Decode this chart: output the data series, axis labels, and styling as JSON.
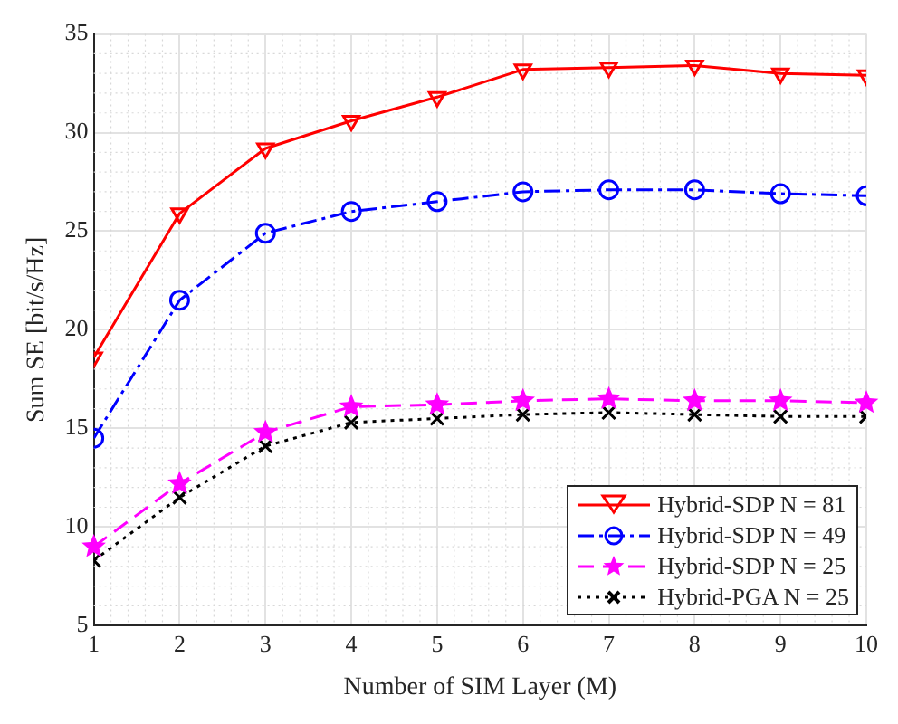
{
  "chart_data": {
    "type": "line",
    "xlabel": "Number of SIM Layer (M)",
    "ylabel": "Sum SE [bit/s/Hz]",
    "x": [
      1,
      2,
      3,
      4,
      5,
      6,
      7,
      8,
      9,
      10
    ],
    "xlim": [
      1,
      10
    ],
    "xticks": [
      1,
      2,
      3,
      4,
      5,
      6,
      7,
      8,
      9,
      10
    ],
    "ylim": [
      5,
      35
    ],
    "yticks": [
      5,
      10,
      15,
      20,
      25,
      30,
      35
    ],
    "grid": true,
    "legend": "bottom right",
    "series": [
      {
        "name": "Hybrid-SDP N = 81",
        "color": "#ff0000",
        "marker": "triangle",
        "line_style": "solid",
        "values": [
          18.6,
          25.9,
          29.2,
          30.6,
          31.8,
          33.2,
          33.3,
          33.4,
          33.0,
          32.9
        ]
      },
      {
        "name": "Hybrid-SDP N = 49",
        "color": "#0000ff",
        "marker": "circle",
        "line_style": "dashdot",
        "values": [
          14.5,
          21.5,
          24.9,
          26.0,
          26.5,
          27.0,
          27.1,
          27.1,
          26.9,
          26.8
        ]
      },
      {
        "name": "Hybrid-SDP N = 25",
        "color": "#ff00ff",
        "marker": "star",
        "line_style": "dashed",
        "values": [
          9.0,
          12.2,
          14.8,
          16.1,
          16.2,
          16.4,
          16.5,
          16.4,
          16.4,
          16.3
        ]
      },
      {
        "name": "Hybrid-PGA N = 25",
        "color": "#000000",
        "marker": "cross",
        "line_style": "dotted",
        "values": [
          8.3,
          11.5,
          14.1,
          15.3,
          15.5,
          15.7,
          15.8,
          15.7,
          15.6,
          15.6
        ]
      }
    ]
  }
}
